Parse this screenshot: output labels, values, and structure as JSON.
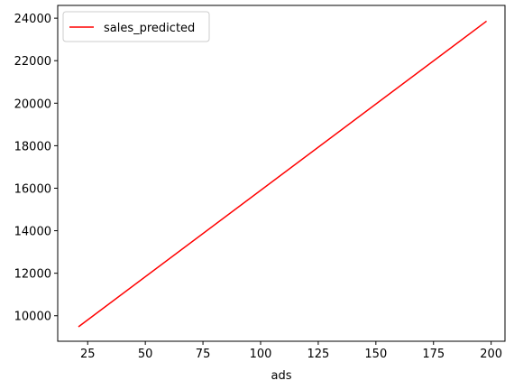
{
  "chart_data": {
    "type": "line",
    "title": "",
    "xlabel": "ads",
    "ylabel": "",
    "xlim": [
      12,
      206
    ],
    "ylim": [
      8800,
      24600
    ],
    "xticks": [
      25,
      50,
      75,
      100,
      125,
      150,
      175,
      200
    ],
    "yticks": [
      10000,
      12000,
      14000,
      16000,
      18000,
      20000,
      22000,
      24000
    ],
    "grid": false,
    "legend_position": "top-left",
    "series": [
      {
        "name": "sales_predicted",
        "color": "#ff0000",
        "x": [
          21,
          198
        ],
        "y": [
          9480,
          23860
        ]
      }
    ]
  }
}
